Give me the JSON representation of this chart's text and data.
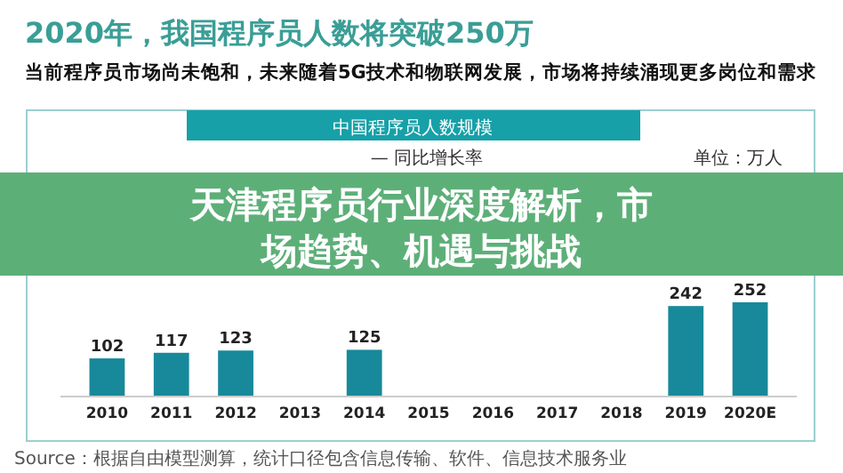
{
  "chart_data": {
    "type": "bar",
    "title": "2020年，我国程序员人数将突破250万",
    "subtitle": "当前程序员市场尚未饱和，未来随着5G技术和物联网发展，市场将持续涌现更多岗位和需求",
    "categories": [
      "2010",
      "2011",
      "2012",
      "2013",
      "2014",
      "2015",
      "2016",
      "2017",
      "2018",
      "2019",
      "2020E"
    ],
    "values": [
      102,
      117,
      123,
      null,
      125,
      null,
      null,
      null,
      null,
      242,
      252
    ],
    "color": "#17899a",
    "data_labels": true,
    "annotations": [
      "中国程序员人数规模",
      "单位：万人",
      "— 同比增长率",
      "天津程序员行业深度解析，市场趋势、机遇与挑战",
      "Source：根据自由模型测算，统计口径包含信息传输、软件、信息技术服务业"
    ]
  }
}
